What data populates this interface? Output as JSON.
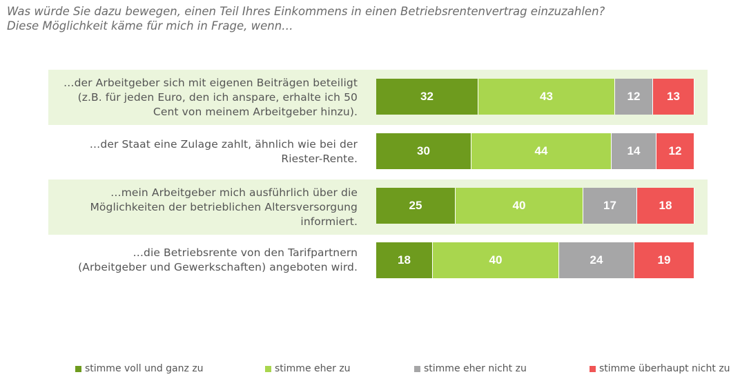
{
  "title": {
    "line1": "Was würde Sie dazu bewegen, einen Teil Ihres Einkommens in einen Betriebsrentenvertrag einzuzahlen?",
    "line2": "Diese Möglichkeit käme für mich in Frage, wenn…"
  },
  "colors": {
    "stimme_voll": "#6e9b1e",
    "stimme_eher": "#a9d64e",
    "eher_nicht": "#a6a6a7",
    "ueberhaupt_nicht": "#f05555",
    "band": "#ebf5dc"
  },
  "chart_data": {
    "type": "bar",
    "orientation": "horizontal",
    "stacked": true,
    "categories": [
      "…der Arbeitgeber sich mit eigenen Beiträgen beteiligt\n(z.B. für jeden Euro, den ich anspare, erhalte ich 50\nCent von meinem Arbeitgeber hinzu).",
      "…der Staat eine Zulage zahlt, ähnlich wie bei der\nRiester-Rente.",
      "…mein Arbeitgeber mich ausführlich über die\nMöglichkeiten der betrieblichen Altersversorgung\ninformiert.",
      "…die Betriebsrente von den Tarifpartnern\n(Arbeitgeber und Gewerkschaften) angeboten wird."
    ],
    "series": [
      {
        "name": "stimme voll und ganz zu",
        "values": [
          32,
          30,
          25,
          18
        ]
      },
      {
        "name": "stimme eher zu",
        "values": [
          43,
          44,
          40,
          40
        ]
      },
      {
        "name": "stimme eher nicht zu",
        "values": [
          12,
          14,
          17,
          24
        ]
      },
      {
        "name": "stimme überhaupt nicht zu",
        "values": [
          13,
          12,
          18,
          19
        ]
      }
    ],
    "legend_position": "bottom",
    "grid": false
  }
}
